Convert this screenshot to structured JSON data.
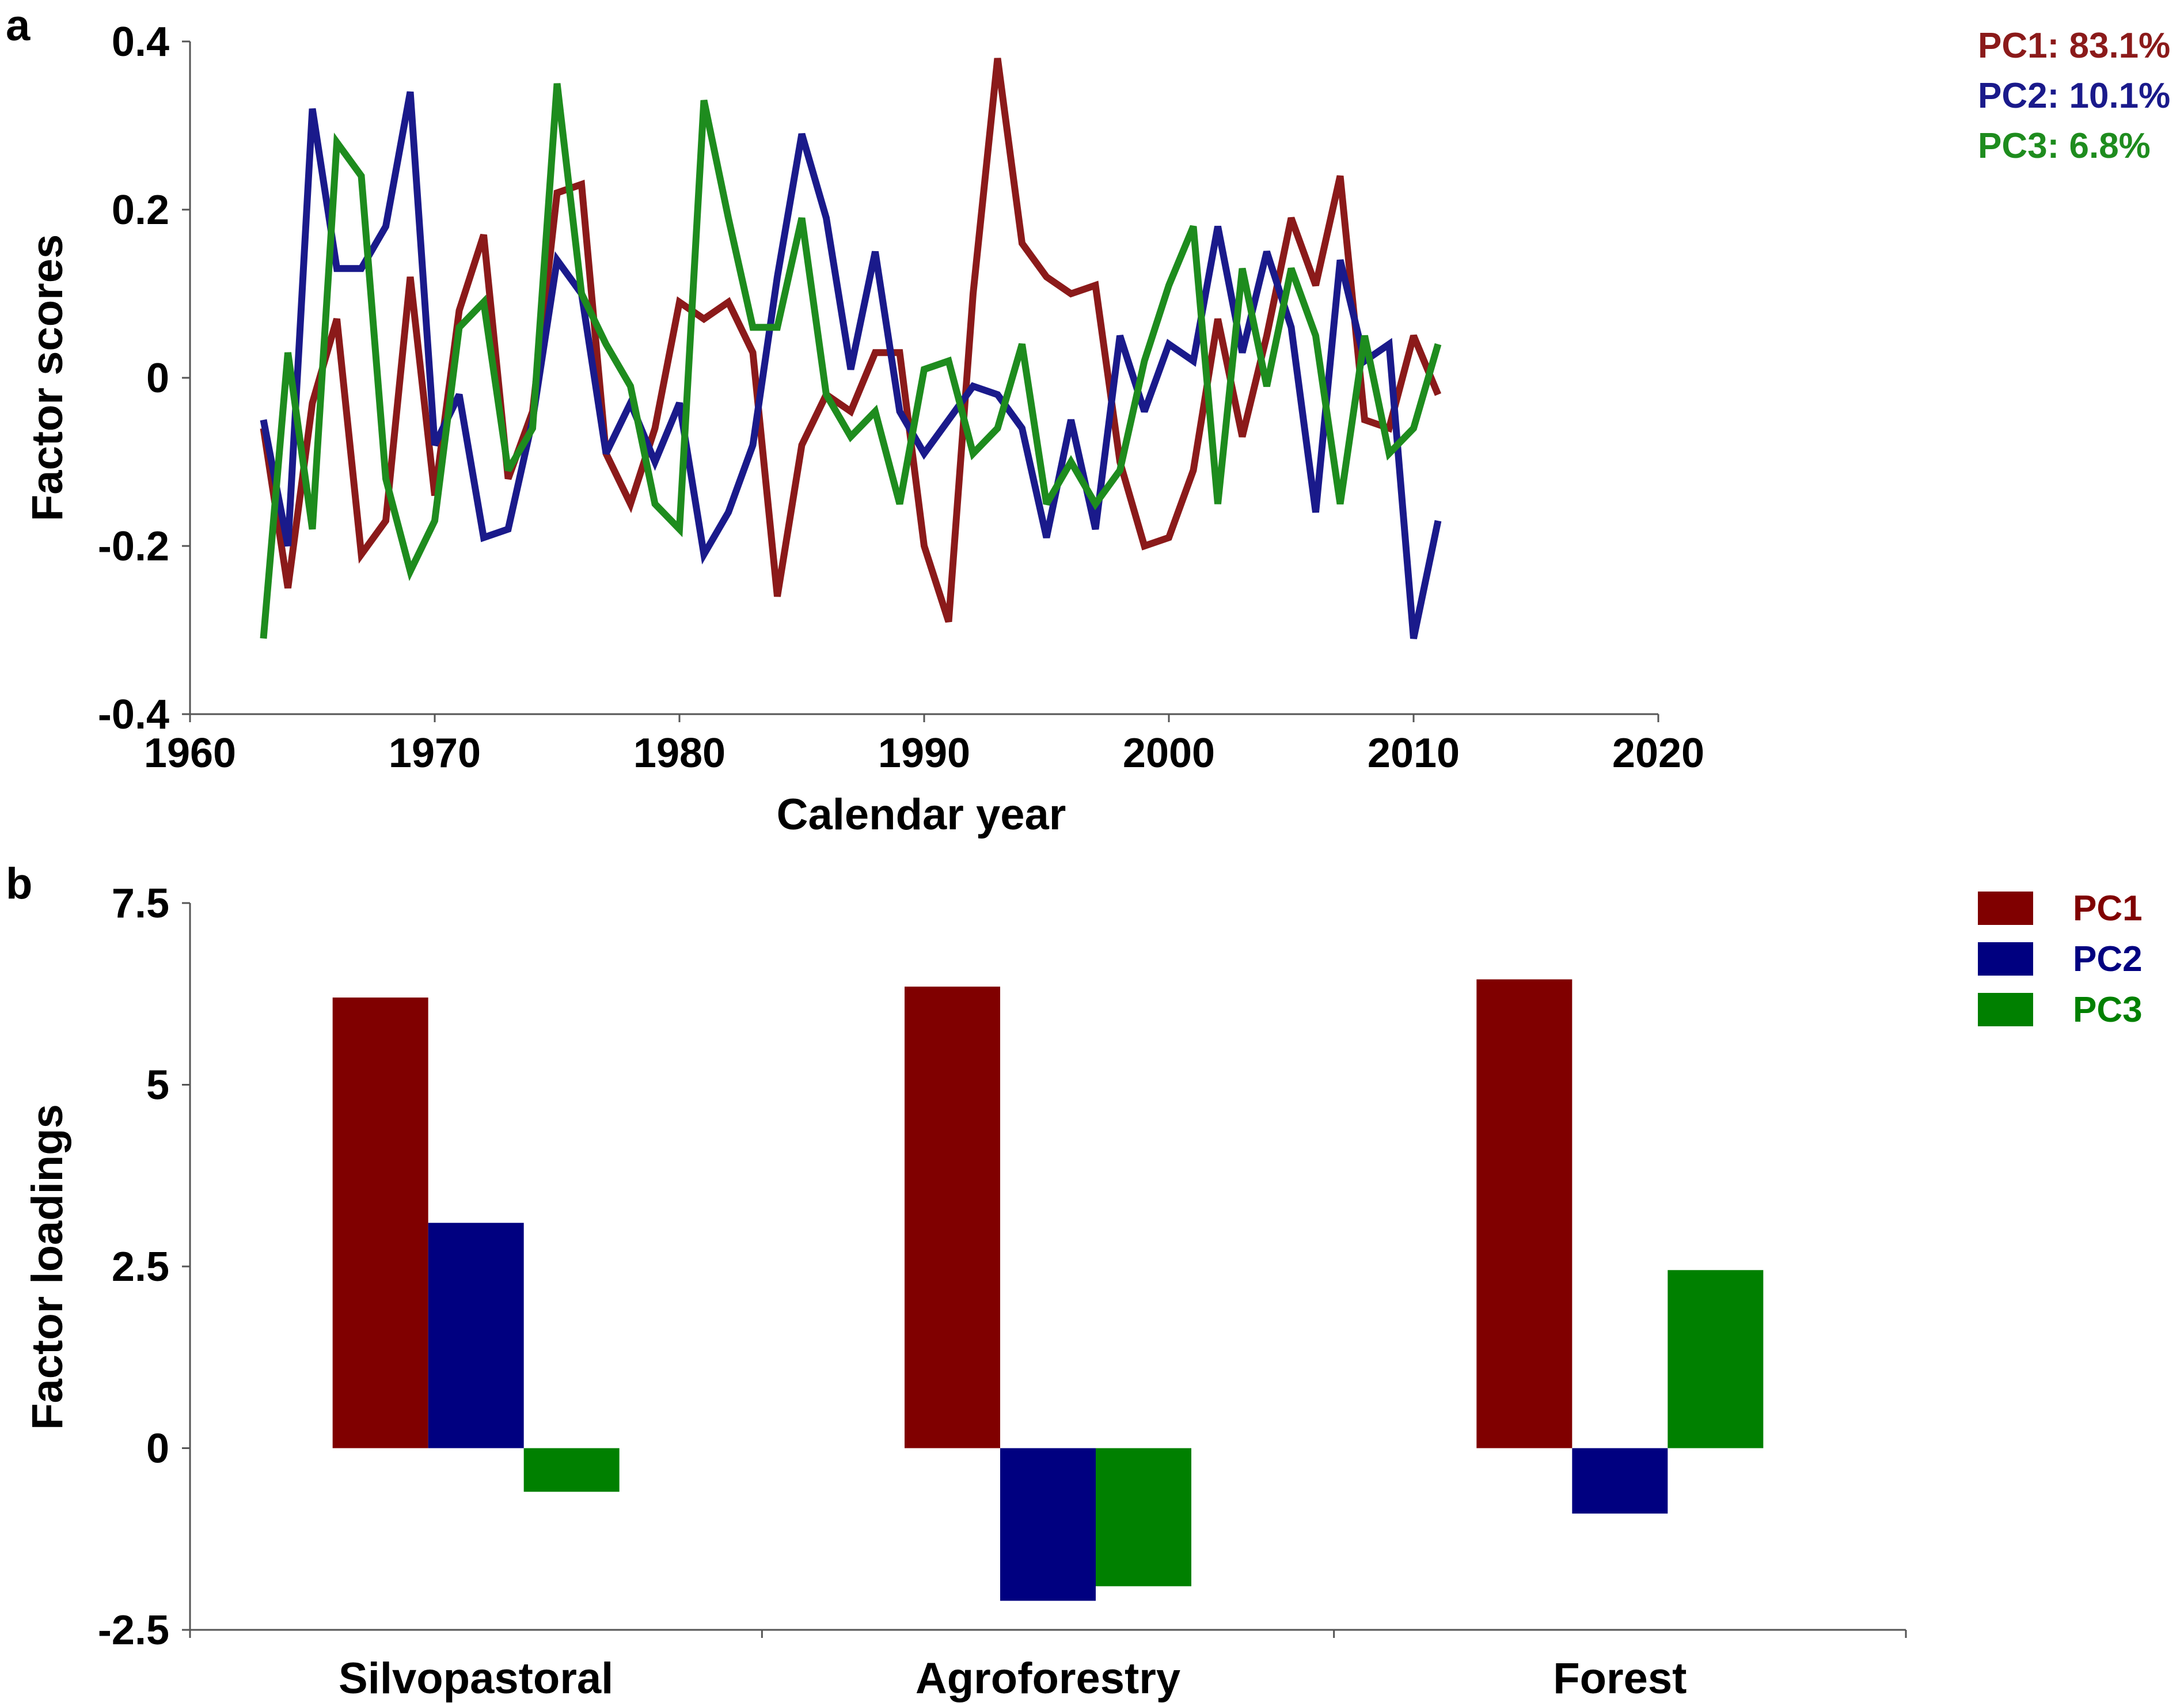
{
  "chart_data": [
    {
      "panel": "a",
      "type": "line",
      "xlabel": "Calendar year",
      "ylabel": "Factor scores",
      "xlim": [
        1960,
        2020
      ],
      "ylim": [
        -0.4,
        0.4
      ],
      "xticks": [
        "1960",
        "1970",
        "1980",
        "1990",
        "2000",
        "2010",
        "2020"
      ],
      "yticks": [
        "0.4",
        "0.2",
        "0",
        "-0.2",
        "-0.4"
      ],
      "x": [
        1963,
        1964,
        1965,
        1966,
        1967,
        1968,
        1969,
        1970,
        1971,
        1972,
        1973,
        1974,
        1975,
        1976,
        1977,
        1978,
        1979,
        1980,
        1981,
        1982,
        1983,
        1984,
        1985,
        1986,
        1987,
        1988,
        1989,
        1990,
        1991,
        1992,
        1993,
        1994,
        1995,
        1996,
        1997,
        1998,
        1999,
        2000,
        2001,
        2002,
        2003,
        2004,
        2005,
        2006,
        2007,
        2008,
        2009,
        2010,
        2011
      ],
      "series": [
        {
          "name": "PC1",
          "legend": "PC1: 83.1%",
          "color": "#8B1A1A",
          "values": [
            -0.06,
            -0.25,
            -0.03,
            0.07,
            -0.21,
            -0.17,
            0.12,
            -0.14,
            0.08,
            0.17,
            -0.12,
            -0.04,
            0.22,
            0.23,
            -0.09,
            -0.15,
            -0.06,
            0.09,
            0.07,
            0.09,
            0.03,
            -0.26,
            -0.08,
            -0.02,
            -0.04,
            0.03,
            0.03,
            -0.2,
            -0.29,
            0.1,
            0.38,
            0.16,
            0.12,
            0.1,
            0.11,
            -0.1,
            -0.2,
            -0.19,
            -0.11,
            0.07,
            -0.07,
            0.05,
            0.19,
            0.11,
            0.24,
            -0.05,
            -0.06,
            0.05,
            -0.02
          ]
        },
        {
          "name": "PC2",
          "legend": "PC2: 10.1%",
          "color": "#1A1A8B",
          "values": [
            -0.05,
            -0.2,
            0.32,
            0.13,
            0.13,
            0.18,
            0.34,
            -0.08,
            -0.02,
            -0.19,
            -0.18,
            -0.05,
            0.14,
            0.1,
            -0.09,
            -0.03,
            -0.1,
            -0.03,
            -0.21,
            -0.16,
            -0.08,
            0.12,
            0.29,
            0.19,
            0.01,
            0.15,
            -0.04,
            -0.09,
            -0.05,
            -0.01,
            -0.02,
            -0.06,
            -0.19,
            -0.05,
            -0.18,
            0.05,
            -0.04,
            0.04,
            0.02,
            0.18,
            0.03,
            0.15,
            0.06,
            -0.16,
            0.14,
            0.02,
            0.04,
            -0.31,
            -0.17
          ]
        },
        {
          "name": "PC3",
          "legend": "PC3: 6.8%",
          "color": "#1E8C1E",
          "values": [
            -0.31,
            0.03,
            -0.18,
            0.28,
            0.24,
            -0.12,
            -0.23,
            -0.17,
            0.06,
            0.09,
            -0.11,
            -0.06,
            0.35,
            0.1,
            0.04,
            -0.01,
            -0.15,
            -0.18,
            0.33,
            0.19,
            0.06,
            0.06,
            0.19,
            -0.02,
            -0.07,
            -0.04,
            -0.15,
            0.01,
            0.02,
            -0.09,
            -0.06,
            0.04,
            -0.15,
            -0.1,
            -0.15,
            -0.11,
            0.02,
            0.11,
            0.18,
            -0.15,
            0.13,
            -0.01,
            0.13,
            0.05,
            -0.15,
            0.05,
            -0.09,
            -0.06,
            0.04
          ]
        }
      ]
    },
    {
      "panel": "b",
      "type": "bar",
      "ylabel": "Factor loadings",
      "ylim": [
        -2.5,
        7.5
      ],
      "yticks": [
        "7.5",
        "5",
        "2.5",
        "0",
        "-2.5"
      ],
      "categories": [
        "Silvopastoral",
        "Agroforestry",
        "Forest"
      ],
      "series": [
        {
          "name": "PC1",
          "legend": "PC1",
          "color": "#800000",
          "values": [
            6.2,
            6.35,
            6.45
          ]
        },
        {
          "name": "PC2",
          "legend": "PC2",
          "color": "#000080",
          "values": [
            3.1,
            -2.1,
            -0.9
          ]
        },
        {
          "name": "PC3",
          "legend": "PC3",
          "color": "#008000",
          "values": [
            -0.6,
            -1.9,
            2.45
          ]
        }
      ]
    }
  ]
}
